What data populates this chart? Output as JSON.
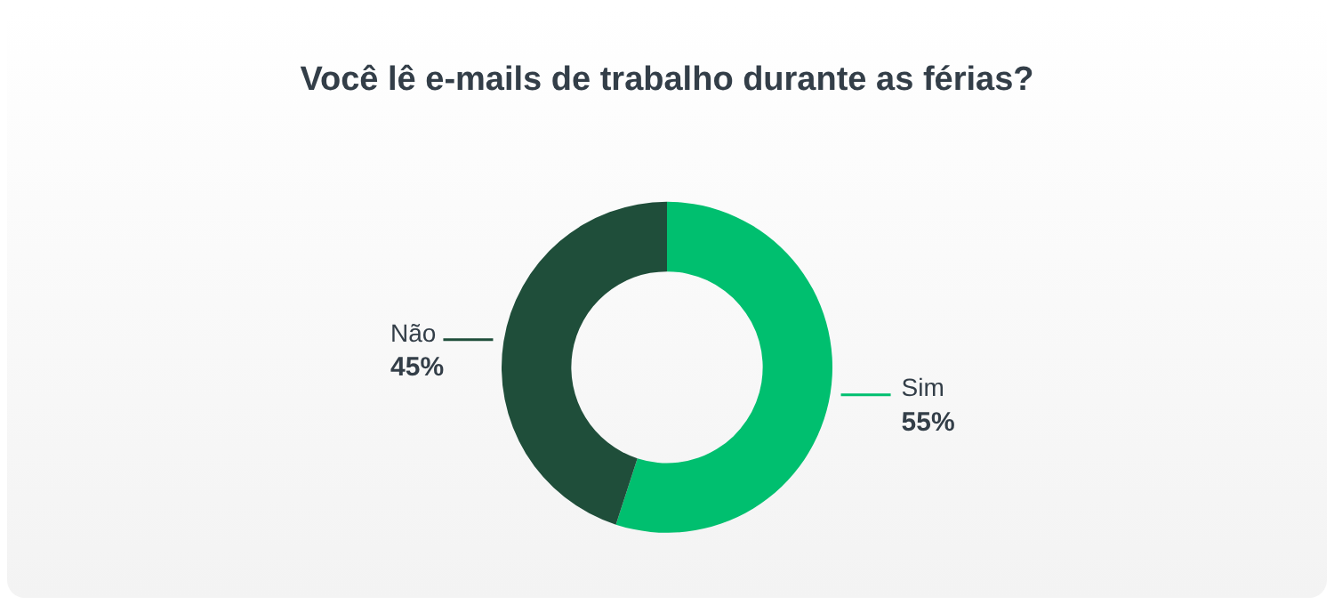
{
  "chart_data": {
    "type": "donut",
    "title": "Você lê e-mails de trabalho durante as férias?",
    "categories": [
      "Sim",
      "Não"
    ],
    "values": [
      55,
      45
    ],
    "colors": [
      "#00bf6f",
      "#1f4e3a"
    ],
    "value_labels": [
      "55%",
      "45%"
    ],
    "legend": false
  }
}
